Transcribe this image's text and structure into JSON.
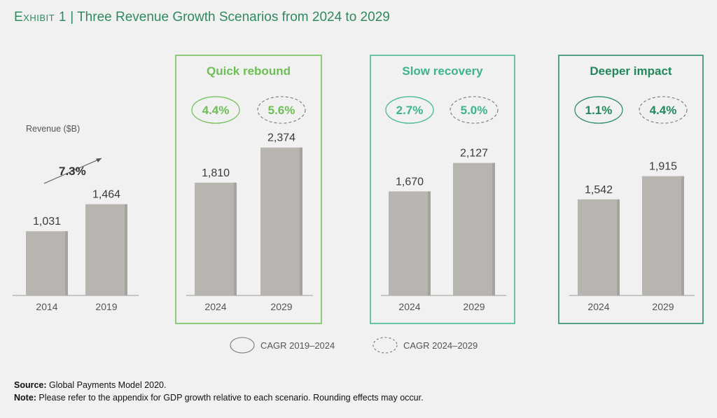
{
  "header": {
    "exhibit": "Exhibit 1",
    "separator": " | ",
    "title": "Three Revenue Growth Scenarios from 2024 to 2029"
  },
  "colors": {
    "bar": "#b8b5b1",
    "bar_edge": "#a6a39f",
    "axis": "#9a9a9a",
    "quick": "#6dbf55",
    "slow": "#3cb589",
    "deeper": "#21885c",
    "dark_text": "#333333"
  },
  "chart_data": {
    "type": "bar",
    "ylabel": "Revenue ($B)",
    "historical": {
      "categories": [
        "2014",
        "2019"
      ],
      "values": [
        1031,
        1464
      ],
      "value_labels": [
        "1,031",
        "1,464"
      ],
      "cagr_label": "7.3%"
    },
    "scenarios": [
      {
        "name": "Quick rebound",
        "color_key": "quick",
        "categories": [
          "2024",
          "2029"
        ],
        "values": [
          1810,
          2374
        ],
        "value_labels": [
          "1,810",
          "2,374"
        ],
        "cagr_2019_2024": "4.4%",
        "cagr_2024_2029": "5.6%"
      },
      {
        "name": "Slow recovery",
        "color_key": "slow",
        "categories": [
          "2024",
          "2029"
        ],
        "values": [
          1670,
          2127
        ],
        "value_labels": [
          "1,670",
          "2,127"
        ],
        "cagr_2019_2024": "2.7%",
        "cagr_2024_2029": "5.0%"
      },
      {
        "name": "Deeper impact",
        "color_key": "deeper",
        "categories": [
          "2024",
          "2029"
        ],
        "values": [
          1542,
          1915
        ],
        "value_labels": [
          "1,542",
          "1,915"
        ],
        "cagr_2019_2024": "1.1%",
        "cagr_2024_2029": "4.4%"
      }
    ],
    "legend": [
      {
        "label": "CAGR 2019–2024",
        "style": "solid"
      },
      {
        "label": "CAGR 2024–2029",
        "style": "dashed"
      }
    ]
  },
  "footer": {
    "source_label": "Source:",
    "source_text": " Global Payments Model 2020.",
    "note_label": "Note:",
    "note_text": " Please refer to the appendix for GDP growth relative to each scenario. Rounding effects may occur."
  }
}
